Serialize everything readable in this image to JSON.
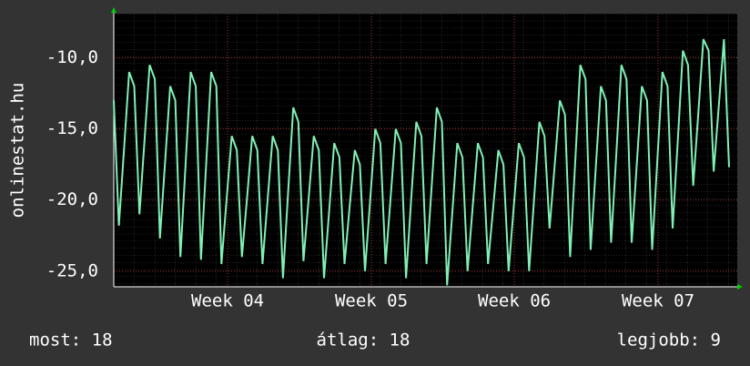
{
  "chart_data": {
    "type": "line",
    "y_label": "onlinestat.hu",
    "x": [
      0,
      0.25,
      0.5,
      0.75,
      1,
      1.25,
      1.5,
      1.75,
      2,
      2.25,
      2.5,
      2.75,
      3,
      3.25,
      3.5,
      3.75,
      4,
      4.25,
      4.5,
      4.75,
      5,
      5.25,
      5.5,
      5.75,
      6,
      6.25,
      6.5,
      6.75,
      7,
      7.25,
      7.5,
      7.75,
      8,
      8.25,
      8.5,
      8.75,
      9,
      9.25,
      9.5,
      9.75,
      10,
      10.25,
      10.5,
      10.75,
      11,
      11.25,
      11.5,
      11.75,
      12,
      12.25,
      12.5,
      12.75,
      13,
      13.25,
      13.5,
      13.75,
      14,
      14.25,
      14.5,
      14.75,
      15,
      15.25,
      15.5,
      15.75,
      16,
      16.25,
      16.5,
      16.75,
      17,
      17.25,
      17.5,
      17.75,
      18,
      18.25,
      18.5,
      18.75,
      19,
      19.25,
      19.5,
      19.75,
      20,
      20.25,
      20.5,
      20.75,
      21,
      21.25,
      21.5,
      21.75,
      22,
      22.25,
      22.5,
      22.75,
      23,
      23.25,
      23.5,
      23.75,
      24,
      24.25,
      24.5,
      24.75,
      25,
      25.25,
      25.5,
      25.75,
      26,
      26.25,
      26.5,
      26.75,
      27,
      27.25,
      27.5,
      27.75,
      28,
      28.25,
      28.5,
      28.75,
      29,
      29.25,
      29.5,
      29.75,
      30
    ],
    "series": [
      {
        "name": null,
        "color": "#80f0b4",
        "values": [
          -13,
          -21.8,
          -16.4,
          -11,
          -12,
          -21,
          -15.8,
          -10.5,
          -11.5,
          -22.7,
          -17.4,
          -12,
          -13,
          -24,
          -17.5,
          -11,
          -12,
          -24.2,
          -17.6,
          -11,
          -12,
          -24.5,
          -20,
          -15.5,
          -16.5,
          -24,
          -19.8,
          -15.5,
          -16.5,
          -24.5,
          -20,
          -15.5,
          -16.5,
          -25.5,
          -19.5,
          -13.5,
          -14.5,
          -24.3,
          -19.9,
          -15.5,
          -16.5,
          -25.5,
          -20.8,
          -16,
          -17,
          -24.5,
          -20.5,
          -16.5,
          -17.5,
          -25,
          -20,
          -15,
          -16,
          -24.5,
          -19.8,
          -15,
          -16,
          -25.5,
          -20,
          -14.5,
          -15.5,
          -24.5,
          -19,
          -13.5,
          -14.5,
          -26,
          -21,
          -16,
          -17,
          -25,
          -20.5,
          -16,
          -17,
          -24.5,
          -20.5,
          -16.5,
          -17.5,
          -25,
          -20.5,
          -16,
          -17,
          -25,
          -19.8,
          -14.5,
          -15.5,
          -22,
          -17.5,
          -13,
          -14,
          -24,
          -17.3,
          -10.5,
          -11.5,
          -23.5,
          -17.8,
          -12,
          -13,
          -23,
          -16.8,
          -10.5,
          -11.5,
          -23,
          -17.5,
          -12,
          -13,
          -23.5,
          -17.3,
          -11,
          -12,
          -22,
          -15.8,
          -9.5,
          -10.5,
          -19,
          -13.9,
          -8.7,
          -9.5,
          -18,
          -13.4,
          -8.7,
          -17.7
        ]
      }
    ],
    "xlim": [
      0,
      30.4
    ],
    "xticks": [
      {
        "value": 5.55,
        "label": "Week 04"
      },
      {
        "value": 12.56,
        "label": "Week 05"
      },
      {
        "value": 19.53,
        "label": "Week 06"
      },
      {
        "value": 26.54,
        "label": "Week 07"
      }
    ],
    "ylim": [
      -26.1,
      -6.9
    ],
    "yticks": [
      {
        "value": -10,
        "label": "-10,0"
      },
      {
        "value": -15,
        "label": "-15,0"
      },
      {
        "value": -20,
        "label": "-20,0"
      },
      {
        "value": -25,
        "label": "-25,0"
      }
    ],
    "grid": true,
    "footer": [
      "most: 18",
      "átlag: 18",
      "legjobb: 9"
    ]
  }
}
